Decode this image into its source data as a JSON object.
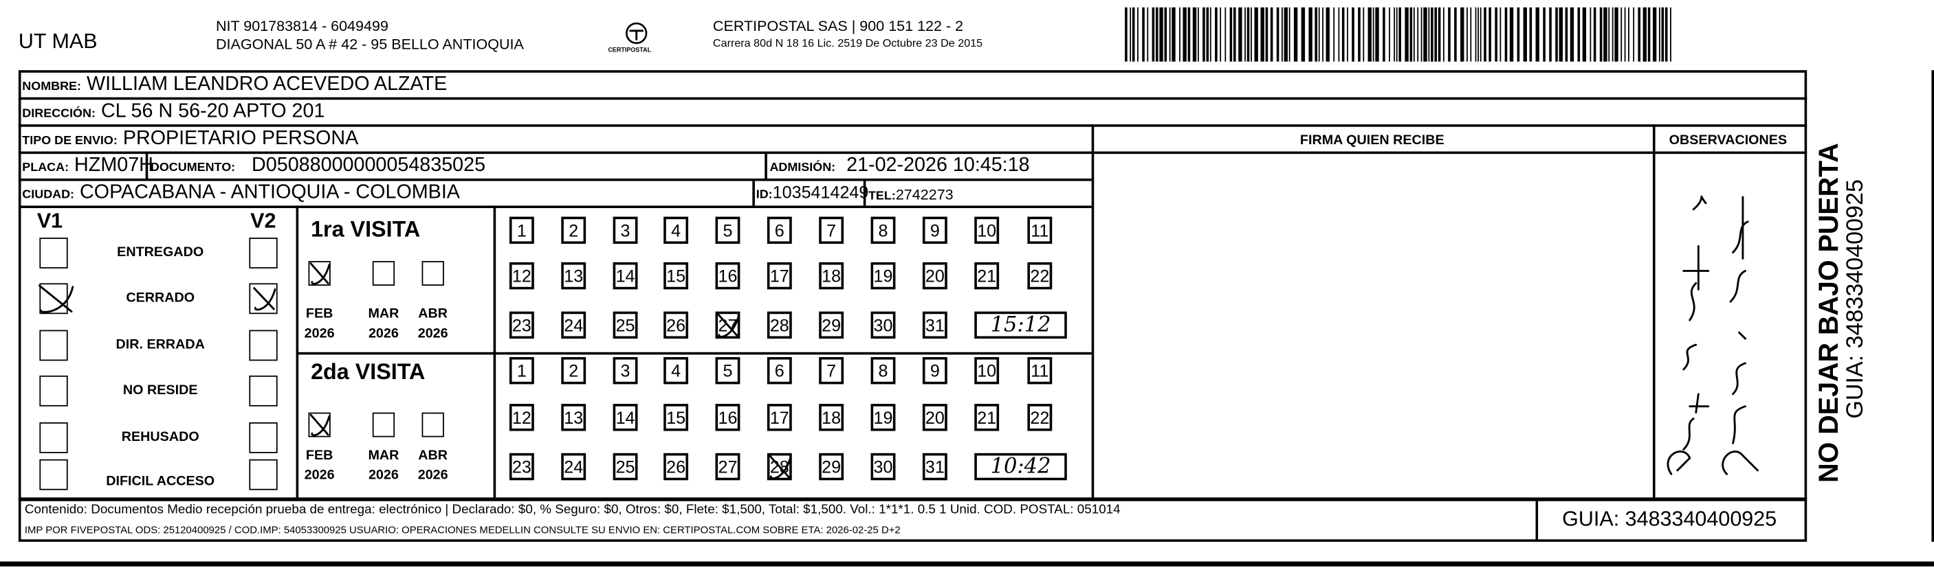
{
  "header": {
    "sender": "UT MAB",
    "nit": "NIT 901783814 - 6049499",
    "address": "DIAGONAL 50 A # 42 - 95  BELLO  ANTIOQUIA",
    "logo_text": "CERTIPOSTAL",
    "company": "CERTIPOSTAL SAS | 900 151 122 - 2",
    "license": "Carrera 80d N 18 16  Lic. 2519 De Octubre 23 De 2015",
    "barcode_icon": "barcode"
  },
  "recipient": {
    "nombre_label": "NOMBRE:",
    "nombre": "WILLIAM LEANDRO ACEVEDO ALZATE",
    "direccion_label": "DIRECCIÓN:",
    "direccion": "CL 56 N 56-20 APTO 201",
    "tipo_label": "TIPO DE ENVIO:",
    "tipo": "PROPIETARIO PERSONA",
    "placa_label": "PLACA:",
    "placa": "HZM07H",
    "documento_label": "DOCUMENTO:",
    "documento": "D05088000000054835025",
    "admision_label": "ADMISIÓN:",
    "admision": "21-02-2026 10:45:18",
    "ciudad_label": "CIUDAD:",
    "ciudad": "COPACABANA - ANTIOQUIA - COLOMBIA",
    "id_label": "ID:",
    "id": "1035414249",
    "tel_label": "TEL:",
    "tel": "2742273"
  },
  "firma_label": "FIRMA QUIEN RECIBE",
  "observaciones_label": "OBSERVACIONES",
  "side": {
    "warning": "NO DEJAR BAJO PUERTA",
    "guia": "GUIA: 3483340400925"
  },
  "visits": {
    "v1_label": "V1",
    "v2_label": "V2",
    "statuses": [
      {
        "label": "ENTREGADO",
        "v1": false,
        "v2": false
      },
      {
        "label": "CERRADO",
        "v1": true,
        "v2": true
      },
      {
        "label": "DIR. ERRADA",
        "v1": false,
        "v2": false
      },
      {
        "label": "NO RESIDE",
        "v1": false,
        "v2": false
      },
      {
        "label": "REHUSADO",
        "v1": false,
        "v2": false
      },
      {
        "label": "DIFICIL ACCESO",
        "v1": false,
        "v2": false
      }
    ],
    "months": [
      {
        "m": "FEB",
        "y": "2026"
      },
      {
        "m": "MAR",
        "y": "2026"
      },
      {
        "m": "ABR",
        "y": "2026"
      }
    ],
    "first": {
      "title": "1ra VISITA",
      "month_marked": "FEB",
      "day_marked": 27,
      "time": "15:12"
    },
    "second": {
      "title": "2da VISITA",
      "month_marked": "FEB",
      "day_marked": 28,
      "time": "10:42"
    }
  },
  "footer": {
    "line1": "Contenido: Documentos Medio recepción prueba de entrega: electrónico | Declarado: $0, % Seguro: $0, Otros: $0, Flete: $1,500, Total: $1,500. Vol.: 1*1*1. 0.5  1 Unid. COD. POSTAL: 051014",
    "line2": "IMP POR FIVEPOSTAL ODS: 25120400925 / COD.IMP: 54053300925 USUARIO: OPERACIONES MEDELLIN CONSULTE SU ENVIO EN: CERTIPOSTAL.COM SOBRE ETA: 2026-02-25 D+2",
    "guia": "GUIA: 3483340400925"
  }
}
